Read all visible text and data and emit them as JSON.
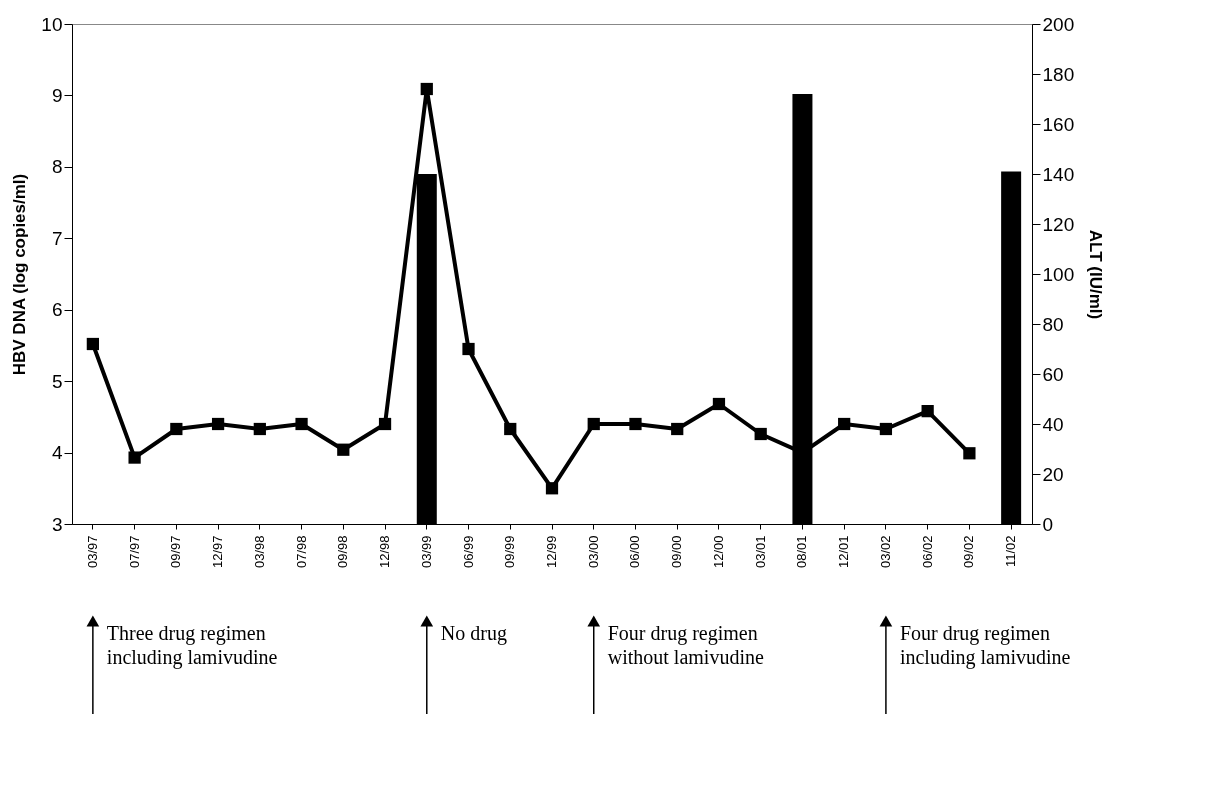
{
  "chart_data": {
    "type": "line",
    "xlabel": null,
    "ylabel": "HBV DNA (log copies/ml)",
    "y2label": "ALT (IU/ml)",
    "categories": [
      "03/97",
      "07/97",
      "09/97",
      "12/97",
      "03/98",
      "07/98",
      "09/98",
      "12/98",
      "03/99",
      "06/99",
      "09/99",
      "12/99",
      "03/00",
      "06/00",
      "09/00",
      "12/00",
      "03/01",
      "08/01",
      "12/01",
      "03/02",
      "06/02",
      "09/02",
      "11/02"
    ],
    "series": [
      {
        "type": "bar",
        "axis": "y2",
        "color": "#000000",
        "values": [
          null,
          null,
          null,
          null,
          null,
          null,
          null,
          null,
          140,
          null,
          null,
          null,
          null,
          null,
          null,
          null,
          null,
          172,
          null,
          null,
          null,
          null,
          141
        ]
      },
      {
        "color": "#000000",
        "marker": "square",
        "line_style": "solid",
        "values": [
          5.52,
          3.93,
          4.33,
          4.4,
          4.33,
          4.4,
          4.04,
          4.4,
          9.09,
          5.45,
          4.33,
          3.5,
          4.4,
          4.4,
          4.33,
          4.68,
          4.26,
          4.0,
          4.4,
          4.33,
          4.58,
          3.99,
          null
        ]
      }
    ],
    "ylim": [
      3,
      10
    ],
    "yticks": [
      3,
      4,
      5,
      6,
      7,
      8,
      9,
      10
    ],
    "y2lim": [
      0,
      200
    ],
    "y2ticks": [
      0,
      20,
      40,
      60,
      80,
      100,
      120,
      140,
      160,
      180,
      200
    ],
    "grid": false,
    "annotations": [
      "Three drug regimen\nincluding lamivudine",
      "No drug",
      "Four drug regimen\nwithout lamivudine",
      "Four drug regimen\nincluding lamivudine"
    ]
  }
}
